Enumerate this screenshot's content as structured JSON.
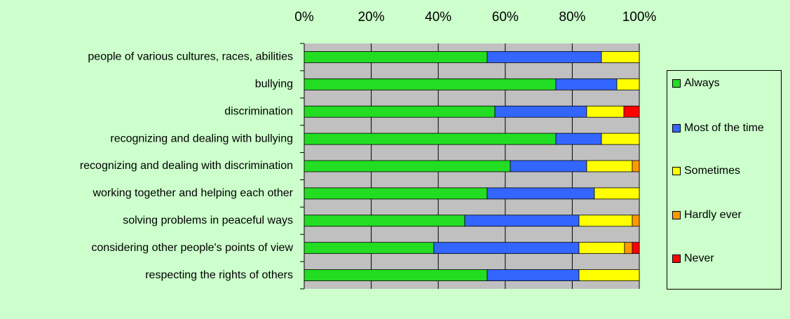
{
  "chart_data": {
    "type": "stacked-bar-horizontal",
    "categories": [
      "people of various cultures, races, abilities",
      "bullying",
      "discrimination",
      "recognizing and dealing with bullying",
      "recognizing and dealing with discrimination",
      "working together and helping each other",
      "solving problems in peaceful ways",
      "considering other people's points of view",
      "respecting the rights of others"
    ],
    "series": [
      {
        "name": "Always",
        "color": "#22dd22",
        "values": [
          54.6,
          75.1,
          56.9,
          75.1,
          61.5,
          54.6,
          47.9,
          38.7,
          54.6
        ]
      },
      {
        "name": "Most of the time",
        "color": "#3366ff",
        "values": [
          34.1,
          18.2,
          27.4,
          13.6,
          22.8,
          32.0,
          34.1,
          43.3,
          27.4
        ]
      },
      {
        "name": "Sometimes",
        "color": "#ffff00",
        "values": [
          11.3,
          6.7,
          11.1,
          11.3,
          13.6,
          13.4,
          15.9,
          13.6,
          18.0
        ]
      },
      {
        "name": "Hardly ever",
        "color": "#ff9900",
        "values": [
          0,
          0,
          0,
          0,
          2.1,
          0,
          2.1,
          2.3,
          0
        ]
      },
      {
        "name": "Never",
        "color": "#ff0000",
        "values": [
          0,
          0,
          4.6,
          0,
          0,
          0,
          0,
          2.1,
          0
        ]
      }
    ],
    "xlim": [
      0,
      100
    ],
    "xticks": [
      {
        "value": 0,
        "label": "0%"
      },
      {
        "value": 20,
        "label": "20%"
      },
      {
        "value": 40,
        "label": "40%"
      },
      {
        "value": 60,
        "label": "60%"
      },
      {
        "value": 80,
        "label": "80%"
      },
      {
        "value": 100,
        "label": "100%"
      }
    ],
    "grid": true,
    "legend": "right"
  }
}
